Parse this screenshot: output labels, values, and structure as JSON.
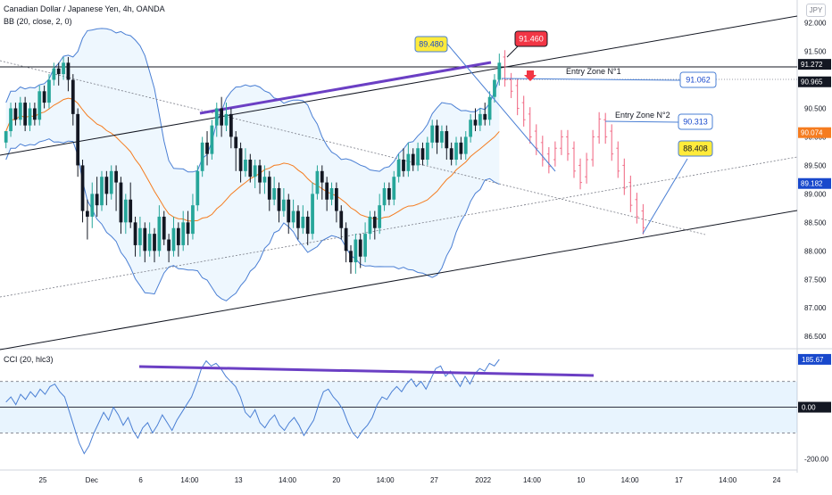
{
  "header": {
    "symbol_line": "Canadian Dollar / Japanese Yen, 4h, OANDA",
    "indicator_line": "BB (20, close, 2, 0)",
    "cci_line": "CCI (20, hlc3)",
    "currency_badge": "JPY"
  },
  "chart_data": {
    "type": "candlestick",
    "instrument": "CADJPY",
    "interval": "4h",
    "price_axis": {
      "range": [
        86.3,
        92.4
      ],
      "ticks": [
        "92.000",
        "91.500",
        "91.000",
        "90.500",
        "90.000",
        "89.500",
        "89.000",
        "88.500",
        "88.000",
        "87.500",
        "87.000",
        "86.500"
      ]
    },
    "price_tags": [
      {
        "value": "91.272",
        "bg": "#131722",
        "fg": "#ffffff"
      },
      {
        "value": "90.965",
        "bg": "#131722",
        "fg": "#ffffff"
      },
      {
        "value": "90.074",
        "bg": "#f57c1f",
        "fg": "#ffffff"
      },
      {
        "value": "89.182",
        "bg": "#1848cc",
        "fg": "#ffffff"
      }
    ],
    "time_axis": [
      "25",
      "Dec",
      "6",
      "14:00",
      "13",
      "14:00",
      "20",
      "14:00",
      "27",
      "2022",
      "14:00",
      "10",
      "14:00",
      "17",
      "14:00",
      "24"
    ],
    "cci_axis": {
      "range": [
        -230,
        220
      ],
      "ticks": [
        "-200.00"
      ],
      "upper_band": 100,
      "lower_band": -100,
      "tags": [
        {
          "value": "185.67",
          "bg": "#1848cc",
          "fg": "#ffffff"
        },
        {
          "value": "0.00",
          "bg": "#131722",
          "fg": "#ffffff"
        }
      ]
    },
    "annotations": [
      {
        "text": "89.480",
        "style": "yellow-callout"
      },
      {
        "text": "91.460",
        "style": "red-callout"
      },
      {
        "text": "Entry Zone N°1",
        "style": "label"
      },
      {
        "text": "91.062",
        "style": "blue-callout"
      },
      {
        "text": "Entry Zone N°2",
        "style": "label"
      },
      {
        "text": "90.313",
        "style": "blue-callout"
      },
      {
        "text": "88.408",
        "style": "yellow-callout"
      }
    ],
    "candles": [
      [
        89.9,
        90.1,
        90.1,
        89.8
      ],
      [
        90.1,
        90.5,
        90.6,
        90.0
      ],
      [
        90.5,
        90.3,
        90.6,
        90.2
      ],
      [
        90.3,
        90.6,
        90.7,
        90.2
      ],
      [
        90.6,
        90.2,
        90.7,
        90.1
      ],
      [
        90.2,
        90.5,
        90.6,
        90.1
      ],
      [
        90.5,
        90.3,
        90.6,
        90.2
      ],
      [
        90.3,
        90.8,
        90.9,
        90.2
      ],
      [
        90.8,
        90.6,
        90.9,
        90.5
      ],
      [
        90.6,
        91.0,
        91.1,
        90.5
      ],
      [
        91.0,
        91.2,
        91.3,
        90.9
      ],
      [
        91.2,
        91.1,
        91.3,
        90.9
      ],
      [
        91.1,
        91.3,
        91.4,
        91.0
      ],
      [
        91.3,
        91.0,
        91.4,
        90.8
      ],
      [
        91.0,
        90.4,
        91.1,
        90.2
      ],
      [
        90.4,
        89.5,
        90.5,
        89.3
      ],
      [
        89.5,
        88.7,
        89.6,
        88.5
      ],
      [
        88.7,
        88.6,
        88.9,
        88.2
      ],
      [
        88.6,
        89.0,
        89.2,
        88.4
      ],
      [
        89.0,
        88.8,
        89.3,
        88.6
      ],
      [
        88.8,
        89.3,
        89.4,
        88.7
      ],
      [
        89.3,
        89.0,
        89.4,
        88.8
      ],
      [
        89.0,
        89.4,
        89.5,
        88.9
      ],
      [
        89.4,
        89.2,
        89.5,
        88.7
      ],
      [
        89.2,
        88.5,
        89.3,
        88.3
      ],
      [
        88.5,
        88.9,
        89.0,
        88.3
      ],
      [
        88.9,
        88.5,
        89.2,
        88.4
      ],
      [
        88.5,
        88.1,
        88.6,
        87.9
      ],
      [
        88.1,
        88.4,
        88.6,
        87.9
      ],
      [
        88.4,
        88.0,
        88.5,
        87.8
      ],
      [
        88.0,
        88.3,
        88.5,
        87.9
      ],
      [
        88.3,
        88.0,
        88.4,
        87.8
      ],
      [
        88.0,
        88.6,
        88.8,
        87.9
      ],
      [
        88.6,
        88.2,
        88.7,
        88.1
      ],
      [
        88.2,
        88.0,
        88.3,
        87.8
      ],
      [
        88.0,
        88.4,
        88.6,
        87.9
      ],
      [
        88.4,
        88.1,
        88.5,
        87.9
      ],
      [
        88.1,
        88.5,
        88.7,
        88.0
      ],
      [
        88.5,
        88.3,
        88.7,
        88.1
      ],
      [
        88.3,
        88.8,
        89.0,
        88.2
      ],
      [
        88.8,
        89.4,
        89.5,
        88.7
      ],
      [
        89.4,
        89.9,
        90.0,
        89.3
      ],
      [
        89.9,
        89.7,
        90.1,
        89.5
      ],
      [
        89.7,
        90.2,
        90.3,
        89.6
      ],
      [
        90.2,
        90.5,
        90.6,
        90.0
      ],
      [
        90.5,
        90.2,
        90.7,
        90.0
      ],
      [
        90.2,
        90.4,
        90.6,
        90.1
      ],
      [
        90.4,
        90.0,
        90.5,
        89.8
      ],
      [
        90.0,
        89.8,
        90.1,
        89.4
      ],
      [
        89.8,
        89.4,
        89.9,
        89.2
      ],
      [
        89.4,
        89.6,
        89.8,
        89.3
      ],
      [
        89.6,
        89.3,
        89.7,
        89.2
      ],
      [
        89.3,
        89.5,
        89.6,
        89.1
      ],
      [
        89.5,
        89.2,
        89.6,
        89.0
      ],
      [
        89.2,
        89.3,
        89.5,
        89.0
      ],
      [
        89.3,
        88.9,
        89.4,
        88.7
      ],
      [
        88.9,
        89.1,
        89.3,
        88.8
      ],
      [
        89.1,
        88.7,
        89.2,
        88.5
      ],
      [
        88.7,
        88.9,
        89.1,
        88.6
      ],
      [
        88.9,
        88.5,
        89.0,
        88.3
      ],
      [
        88.5,
        88.7,
        88.9,
        88.4
      ],
      [
        88.7,
        88.4,
        88.8,
        88.2
      ],
      [
        88.4,
        88.6,
        88.8,
        88.3
      ],
      [
        88.6,
        88.3,
        88.7,
        88.1
      ],
      [
        88.3,
        89.0,
        89.2,
        88.2
      ],
      [
        89.0,
        89.4,
        89.5,
        88.9
      ],
      [
        89.4,
        89.2,
        89.5,
        88.9
      ],
      [
        89.2,
        88.9,
        89.3,
        88.7
      ],
      [
        88.9,
        89.1,
        89.2,
        88.8
      ],
      [
        89.1,
        88.7,
        89.2,
        88.5
      ],
      [
        88.7,
        88.4,
        88.8,
        88.2
      ],
      [
        88.4,
        88.0,
        88.5,
        87.8
      ],
      [
        88.0,
        87.8,
        88.1,
        87.6
      ],
      [
        87.8,
        88.2,
        88.3,
        87.6
      ],
      [
        88.2,
        87.9,
        88.3,
        87.7
      ],
      [
        87.9,
        88.3,
        88.5,
        87.8
      ],
      [
        88.3,
        88.6,
        88.7,
        88.2
      ],
      [
        88.6,
        88.4,
        88.7,
        88.2
      ],
      [
        88.4,
        88.8,
        89.0,
        88.3
      ],
      [
        88.8,
        89.1,
        89.2,
        88.7
      ],
      [
        89.1,
        88.9,
        89.2,
        88.8
      ],
      [
        88.9,
        89.3,
        89.4,
        88.8
      ],
      [
        89.3,
        89.6,
        89.7,
        89.2
      ],
      [
        89.6,
        89.4,
        89.8,
        89.3
      ],
      [
        89.4,
        89.7,
        89.9,
        89.3
      ],
      [
        89.7,
        89.5,
        89.8,
        89.4
      ],
      [
        89.5,
        89.8,
        89.9,
        89.4
      ],
      [
        89.8,
        89.6,
        89.9,
        89.5
      ],
      [
        89.6,
        89.9,
        90.0,
        89.5
      ],
      [
        89.9,
        90.2,
        90.3,
        89.8
      ],
      [
        90.2,
        89.9,
        90.3,
        89.7
      ],
      [
        89.9,
        90.1,
        90.2,
        89.8
      ],
      [
        90.1,
        89.8,
        90.2,
        89.6
      ],
      [
        89.8,
        89.6,
        89.9,
        89.5
      ],
      [
        89.6,
        89.9,
        90.0,
        89.5
      ],
      [
        89.9,
        89.7,
        90.0,
        89.6
      ],
      [
        89.7,
        90.0,
        90.1,
        89.6
      ],
      [
        90.0,
        90.3,
        90.4,
        89.9
      ],
      [
        90.3,
        90.2,
        90.5,
        90.1
      ],
      [
        90.2,
        90.4,
        90.5,
        90.1
      ],
      [
        90.4,
        90.3,
        90.6,
        90.2
      ],
      [
        90.3,
        90.7,
        90.8,
        90.2
      ],
      [
        90.7,
        91.0,
        91.1,
        90.6
      ],
      [
        91.0,
        91.3,
        91.46,
        90.9
      ]
    ],
    "projection": [
      [
        91.4,
        91.0
      ],
      [
        91.0,
        90.8
      ],
      [
        90.9,
        90.5
      ],
      [
        90.6,
        90.3
      ],
      [
        90.4,
        90.0
      ],
      [
        90.1,
        89.8
      ],
      [
        89.9,
        89.6
      ],
      [
        89.7,
        89.48
      ],
      [
        89.6,
        89.8
      ],
      [
        89.8,
        90.0
      ],
      [
        90.0,
        89.7
      ],
      [
        89.8,
        89.4
      ],
      [
        89.5,
        89.2
      ],
      [
        89.3,
        89.6
      ],
      [
        89.6,
        90.0
      ],
      [
        90.0,
        90.313
      ],
      [
        90.3,
        90.0
      ],
      [
        90.1,
        89.7
      ],
      [
        89.8,
        89.4
      ],
      [
        89.5,
        89.1
      ],
      [
        89.2,
        88.8
      ],
      [
        88.9,
        88.6
      ],
      [
        88.7,
        88.408
      ]
    ],
    "cci_values": [
      20,
      40,
      10,
      50,
      30,
      60,
      40,
      70,
      50,
      80,
      90,
      60,
      40,
      -20,
      -80,
      -140,
      -180,
      -150,
      -100,
      -60,
      -20,
      -50,
      0,
      -30,
      -70,
      -40,
      -90,
      -120,
      -80,
      -60,
      -100,
      -70,
      -30,
      -60,
      -90,
      -50,
      -20,
      10,
      40,
      90,
      150,
      180,
      160,
      170,
      150,
      120,
      100,
      80,
      40,
      -20,
      -40,
      -10,
      -60,
      -80,
      -50,
      -30,
      -70,
      -90,
      -60,
      -40,
      -70,
      -110,
      -80,
      -50,
      10,
      60,
      70,
      40,
      20,
      -10,
      -60,
      -100,
      -120,
      -90,
      -70,
      -40,
      10,
      40,
      30,
      60,
      80,
      60,
      90,
      110,
      80,
      100,
      70,
      110,
      150,
      160,
      120,
      140,
      110,
      80,
      120,
      90,
      130,
      150,
      140,
      170,
      160,
      185.67
    ]
  }
}
